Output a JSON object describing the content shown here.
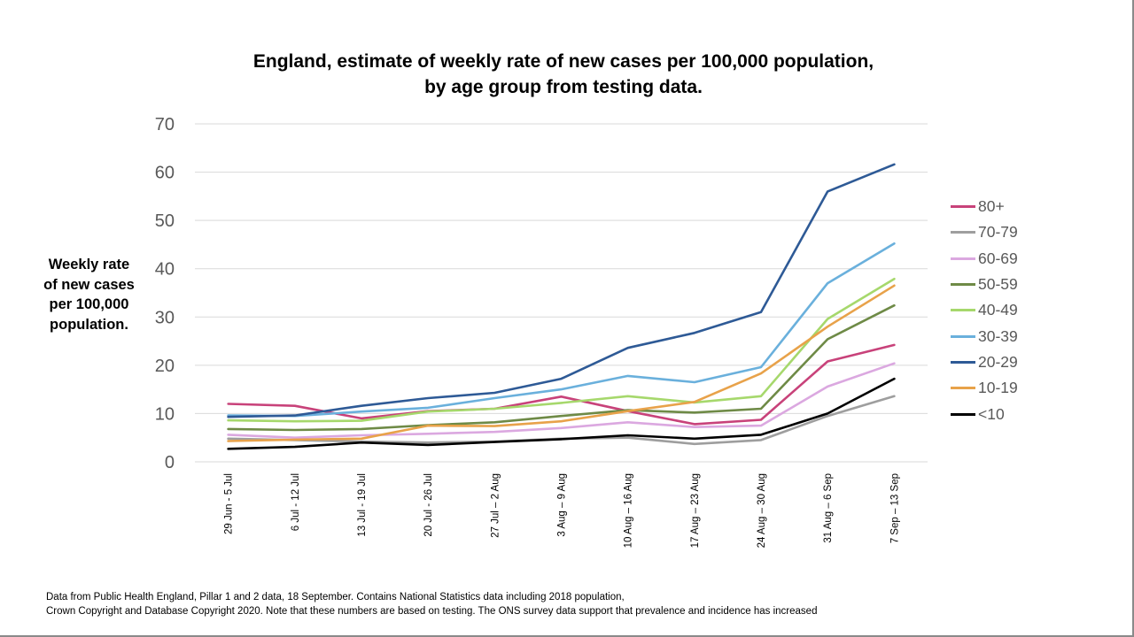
{
  "chart_data": {
    "type": "line",
    "title_lines": [
      "England, estimate of weekly rate of new cases per 100,000 population,",
      "by age group from testing data."
    ],
    "ylabel_lines": [
      "Weekly rate",
      "of new cases",
      "per 100,000",
      "population."
    ],
    "ylim": [
      0,
      70
    ],
    "yticks": [
      "0",
      "10",
      "20",
      "30",
      "40",
      "50",
      "60",
      "70"
    ],
    "grid": true,
    "legend_position": "right",
    "categories": [
      "29 Jun - 5 Jul",
      "6 Jul - 12 Jul",
      "13 Jul - 19 Jul",
      "20 Jul - 26 Jul",
      "27 Jul – 2 Aug",
      "3 Aug – 9 Aug",
      "10 Aug – 16 Aug",
      "17 Aug – 23 Aug",
      "24 Aug – 30 Aug",
      "31 Aug – 6 Sep",
      "7 Sep – 13 Sep"
    ],
    "series": [
      {
        "name": "80+",
        "color": "#c8427a",
        "values": [
          12.0,
          11.6,
          9.0,
          10.5,
          11.0,
          13.5,
          10.5,
          7.8,
          8.7,
          20.8,
          24.2
        ]
      },
      {
        "name": "70-79",
        "color": "#9e9e9e",
        "values": [
          4.8,
          4.5,
          4.2,
          4.0,
          4.2,
          4.8,
          5.0,
          3.7,
          4.5,
          9.5,
          13.6
        ]
      },
      {
        "name": "60-69",
        "color": "#dba8e0",
        "values": [
          5.6,
          5.0,
          5.5,
          5.8,
          6.2,
          7.0,
          8.2,
          7.2,
          7.5,
          15.6,
          20.4
        ]
      },
      {
        "name": "50-59",
        "color": "#6e8a46",
        "values": [
          6.8,
          6.6,
          6.8,
          7.6,
          8.2,
          9.5,
          10.7,
          10.2,
          11.0,
          25.4,
          32.4
        ]
      },
      {
        "name": "40-49",
        "color": "#a6d86c",
        "values": [
          8.6,
          8.4,
          8.5,
          10.4,
          11.0,
          12.2,
          13.6,
          12.3,
          13.6,
          29.6,
          37.9
        ]
      },
      {
        "name": "30-39",
        "color": "#6ab0dc",
        "values": [
          9.6,
          9.5,
          10.4,
          11.2,
          13.2,
          15.0,
          17.8,
          16.5,
          19.6,
          37.0,
          45.2
        ]
      },
      {
        "name": "20-29",
        "color": "#2e5a96",
        "values": [
          9.3,
          9.6,
          11.6,
          13.2,
          14.3,
          17.2,
          23.6,
          26.7,
          31.0,
          56.0,
          61.6
        ]
      },
      {
        "name": "10-19",
        "color": "#e8a24a",
        "values": [
          4.3,
          4.6,
          4.8,
          7.5,
          7.4,
          8.4,
          10.5,
          12.4,
          18.3,
          28.0,
          36.5
        ]
      },
      {
        "name": "<10",
        "color": "#000000",
        "values": [
          2.7,
          3.1,
          4.0,
          3.5,
          4.1,
          4.7,
          5.5,
          4.8,
          5.6,
          10.0,
          17.2
        ]
      }
    ]
  },
  "footnote_lines": [
    "Data from Public Health England, Pillar 1 and 2 data, 18 September.  Contains National Statistics data including 2018 population,",
    "Crown Copyright and Database Copyright 2020. Note that these numbers are based on testing. The ONS survey data support that prevalence and incidence has increased"
  ]
}
